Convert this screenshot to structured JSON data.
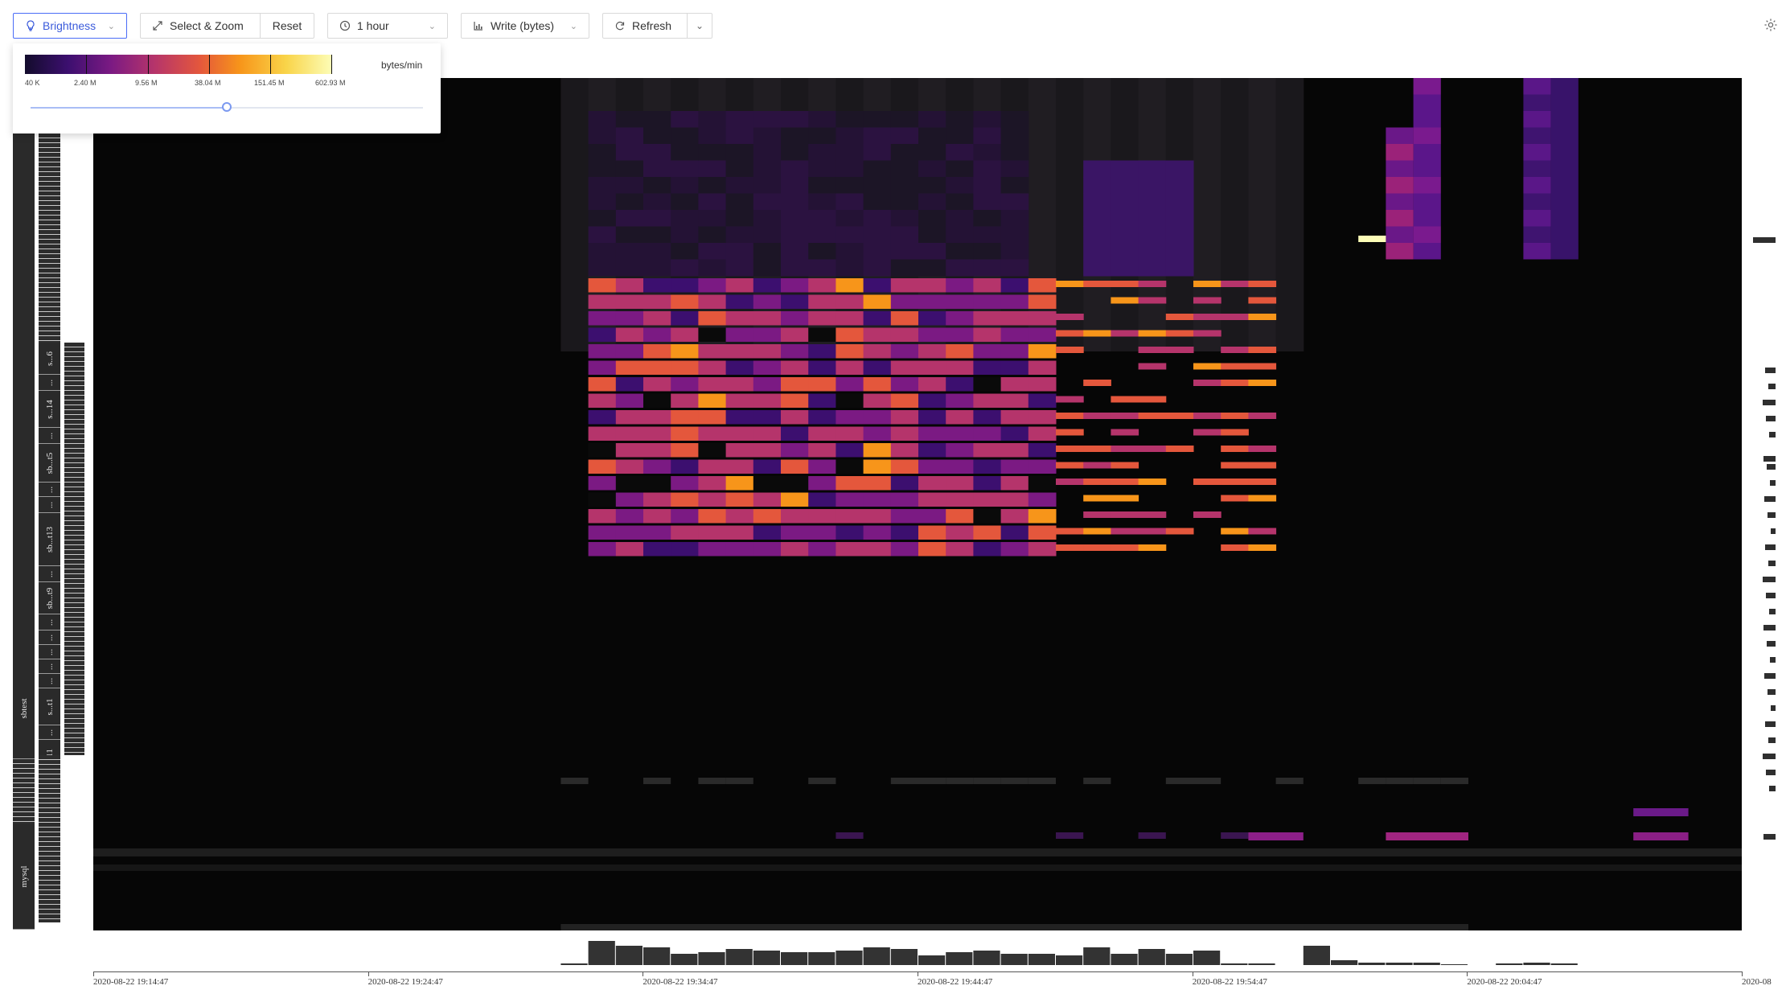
{
  "toolbar": {
    "brightness_label": "Brightness",
    "select_zoom_label": "Select & Zoom",
    "reset_label": "Reset",
    "time_range_label": "1 hour",
    "metric_label": "Write (bytes)",
    "refresh_label": "Refresh"
  },
  "brightness_popover": {
    "unit": "bytes/min",
    "legend_labels": [
      "40 K",
      "2.40 M",
      "9.56 M",
      "38.04 M",
      "151.45 M",
      "602.93 M"
    ],
    "slider_value_fraction": 0.5
  },
  "y_axis": {
    "db_labels": [
      "sbtest",
      "mysql"
    ],
    "table_labels": [
      "s...6",
      "s...14",
      "sb...t5",
      "sb...t13",
      "sb...t9",
      "s...t1",
      "sbtest11"
    ],
    "ellipsis": "..."
  },
  "x_axis": {
    "tick_labels": [
      "2020-08-22 19:14:47",
      "2020-08-22 19:24:47",
      "2020-08-22 19:34:47",
      "2020-08-22 19:44:47",
      "2020-08-22 19:54:47",
      "2020-08-22 20:04:47",
      "2020-08"
    ]
  },
  "colors": {
    "scale": [
      "#130c2c",
      "#3c0f6f",
      "#7b1a83",
      "#b5346b",
      "#e4573c",
      "#f7951a",
      "#f9d449",
      "#fcfdb7"
    ],
    "accent": "#3b5bdb"
  }
}
